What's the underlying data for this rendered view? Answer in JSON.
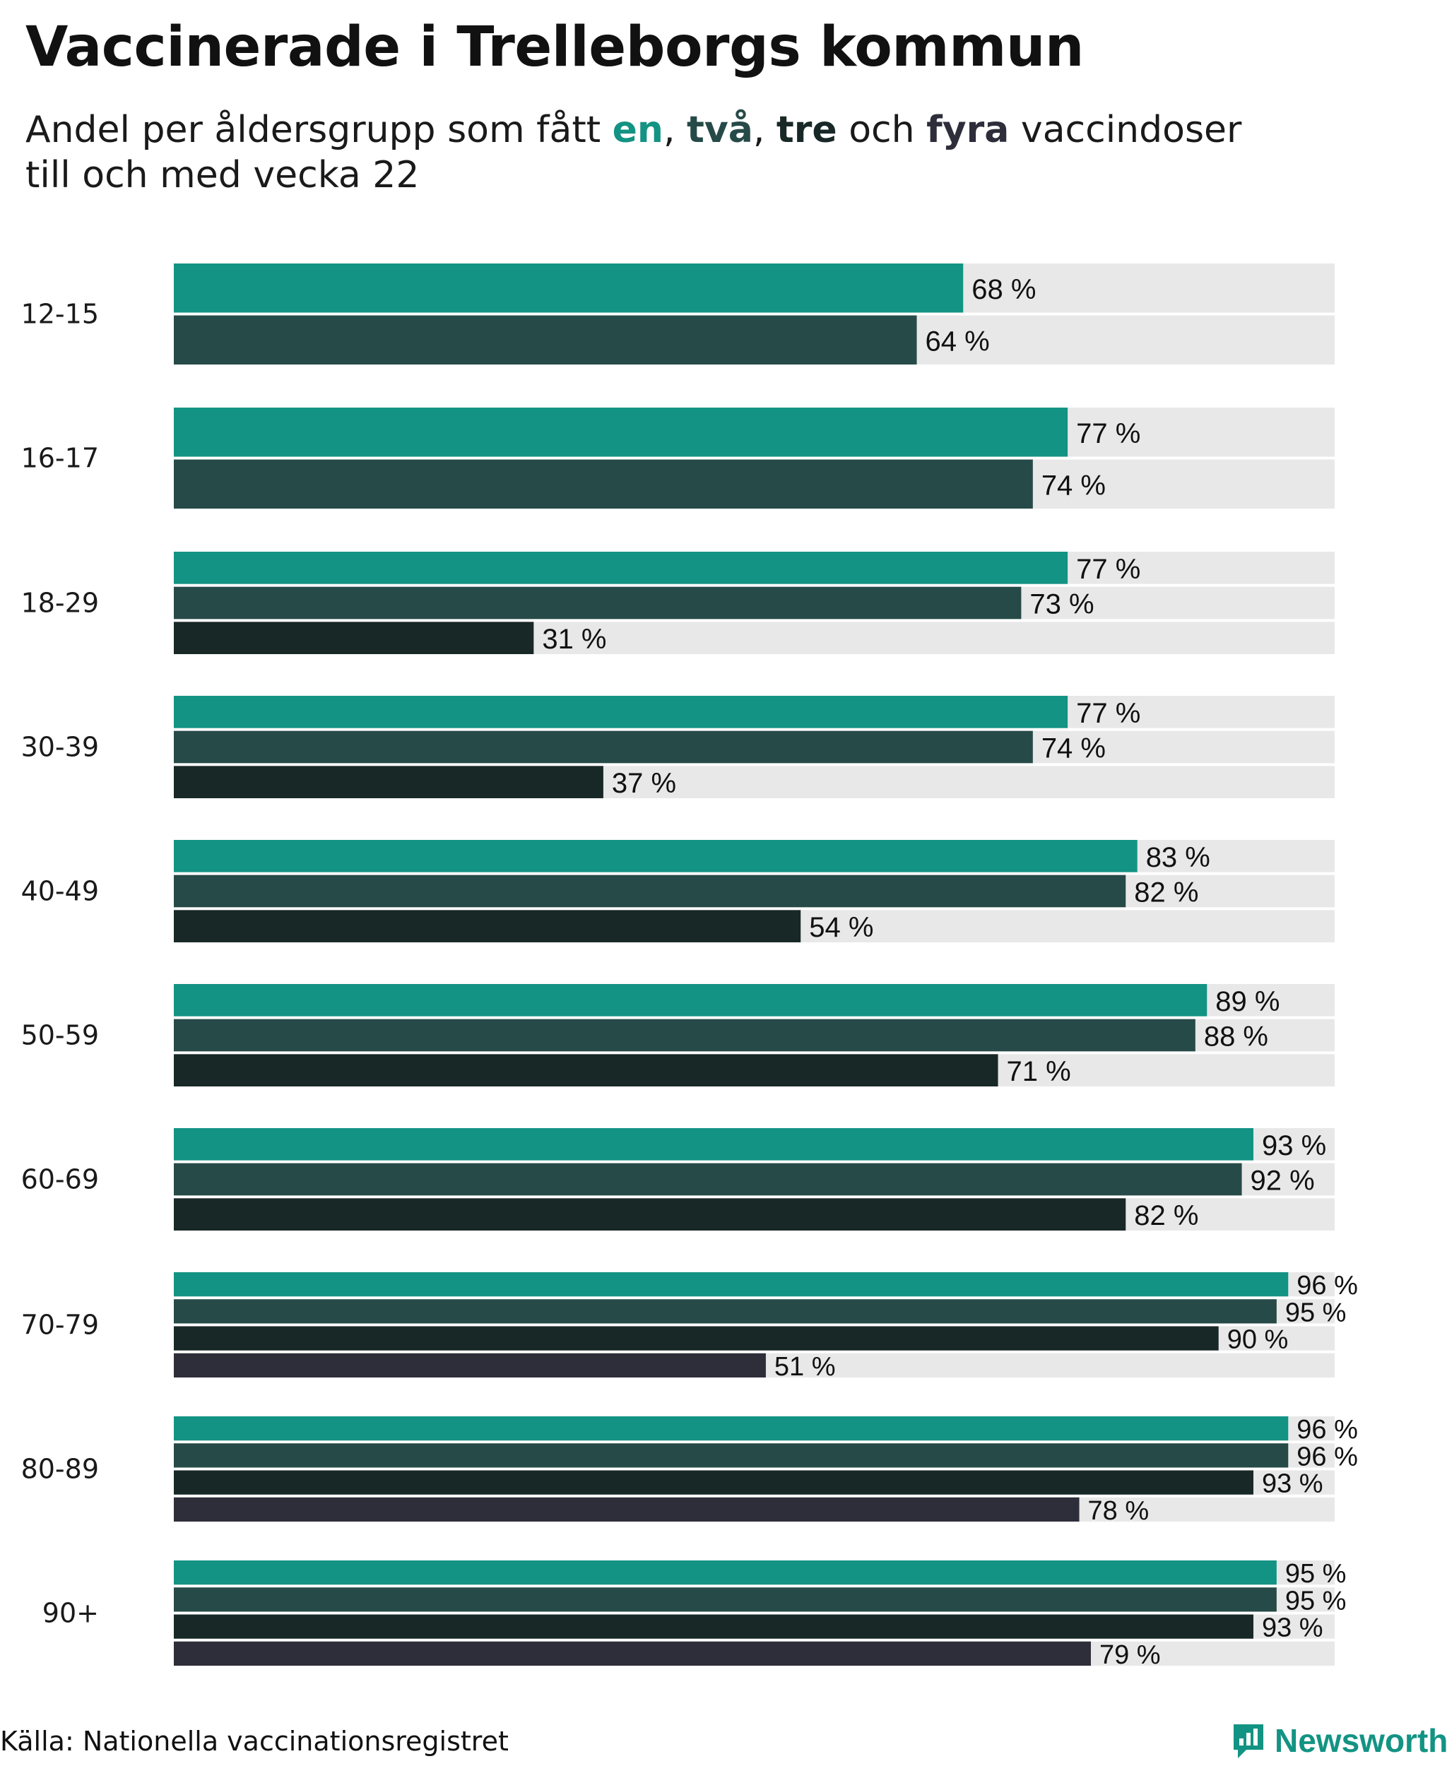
{
  "title": "Vaccinerade i Trelleborgs kommun",
  "subtitle": {
    "prefix": "Andel per åldersgrupp som fått ",
    "dose1": "en",
    "sep1": ", ",
    "dose2": "två",
    "sep2": ", ",
    "dose3": "tre",
    "sep3": " och ",
    "dose4": "fyra",
    "suffix": " vaccindoser",
    "line2": "till och med vecka 22"
  },
  "colors": {
    "dose1": "#139383",
    "dose2": "#264a48",
    "dose3": "#182826",
    "dose4": "#2e2d3a",
    "track": "#e8e8e8"
  },
  "chart_data": {
    "type": "bar",
    "orientation": "horizontal",
    "unit": "%",
    "xlim": [
      0,
      100
    ],
    "grid": false,
    "categories": [
      "12-15",
      "16-17",
      "18-29",
      "30-39",
      "40-49",
      "50-59",
      "60-69",
      "70-79",
      "80-89",
      "90+"
    ],
    "series": [
      {
        "name": "en",
        "values": [
          68,
          77,
          77,
          77,
          83,
          89,
          93,
          96,
          96,
          95
        ]
      },
      {
        "name": "två",
        "values": [
          64,
          74,
          73,
          74,
          82,
          88,
          92,
          95,
          96,
          95
        ]
      },
      {
        "name": "tre",
        "values": [
          null,
          null,
          31,
          37,
          54,
          71,
          82,
          90,
          93,
          93
        ]
      },
      {
        "name": "fyra",
        "values": [
          null,
          null,
          null,
          null,
          null,
          null,
          null,
          51,
          78,
          79
        ]
      }
    ]
  },
  "footer": {
    "source": "Källa: Nationella vaccinationsregistret",
    "brand": "Newsworthy"
  }
}
